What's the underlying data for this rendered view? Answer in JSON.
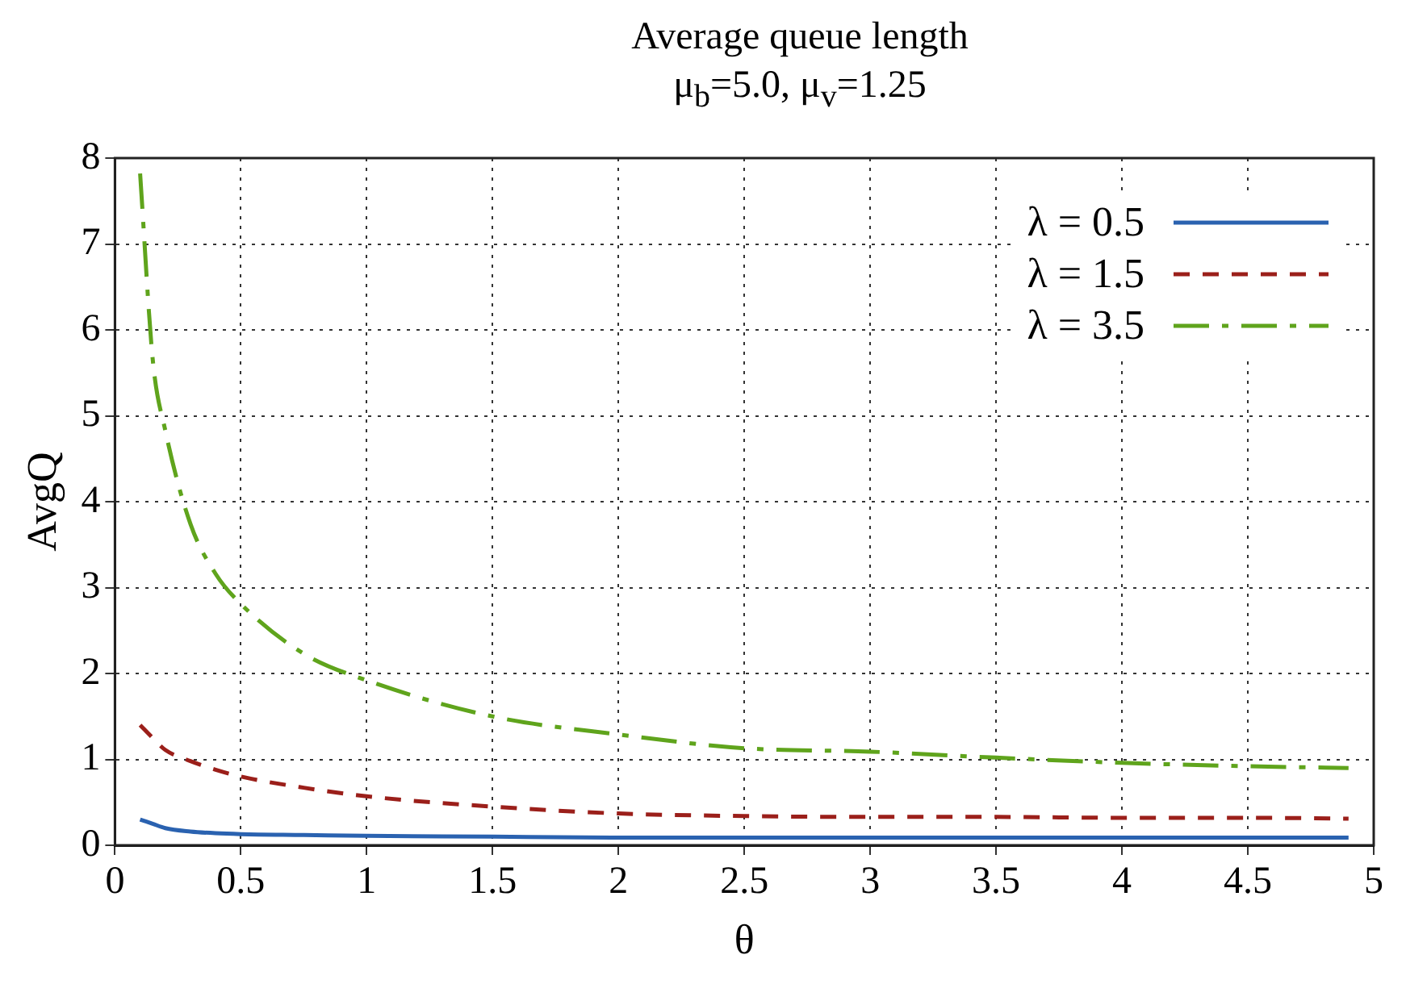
{
  "chart_data": {
    "type": "line",
    "title": "Average queue length",
    "subtitle": "μ$_{b}$=5.0, μ$_{v}$=1.25",
    "xlabel": "θ",
    "ylabel": "AvgQ",
    "xlim": [
      0,
      5
    ],
    "xticks": [
      0,
      0.5,
      1,
      1.5,
      2,
      2.5,
      3,
      3.5,
      4,
      4.5,
      5
    ],
    "ylim": [
      0,
      8
    ],
    "yticks": [
      0,
      1,
      2,
      3,
      4,
      5,
      6,
      7,
      8
    ],
    "grid": true,
    "legend": "top right",
    "marker": "none",
    "x": [
      0.1,
      0.15,
      0.2,
      0.3,
      0.4,
      0.5,
      0.75,
      1,
      1.5,
      2,
      2.5,
      3,
      3.5,
      4,
      4.5,
      4.9
    ],
    "series": [
      {
        "name": "λ = 0.5",
        "color": "#2a62b0",
        "line_style": "solid",
        "values": [
          0.3,
          0.25,
          0.2,
          0.16,
          0.14,
          0.13,
          0.12,
          0.11,
          0.1,
          0.09,
          0.09,
          0.09,
          0.09,
          0.09,
          0.09,
          0.09
        ]
      },
      {
        "name": "λ = 1.5",
        "color": "#9b1f1a",
        "line_style": "dashed",
        "values": [
          1.4,
          1.25,
          1.11,
          0.98,
          0.88,
          0.8,
          0.67,
          0.57,
          0.45,
          0.37,
          0.34,
          0.33,
          0.33,
          0.32,
          0.32,
          0.31
        ]
      },
      {
        "name": "λ = 3.5",
        "color": "#5fa41c",
        "line_style": "dashdot",
        "values": [
          7.82,
          5.66,
          4.83,
          3.74,
          3.16,
          2.81,
          2.23,
          1.92,
          1.5,
          1.29,
          1.13,
          1.09,
          1.02,
          0.96,
          0.92,
          0.9
        ]
      }
    ]
  }
}
